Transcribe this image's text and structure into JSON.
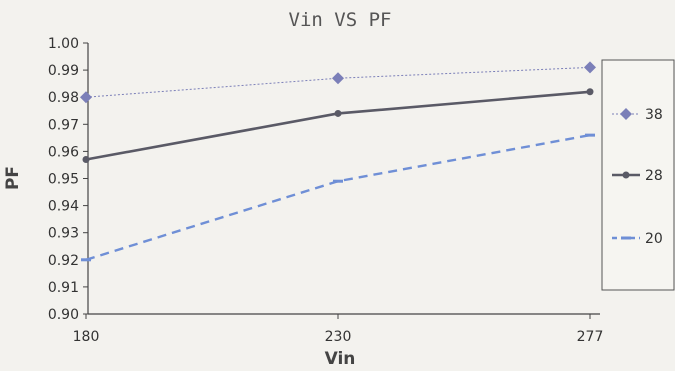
{
  "chart_data": {
    "type": "line",
    "title": "Vin VS PF",
    "xlabel": "Vin",
    "ylabel": "PF",
    "categories": [
      "180",
      "230",
      "277"
    ],
    "ylim": [
      0.9,
      1.0
    ],
    "yticks": [
      "1.00",
      "0.99",
      "0.98",
      "0.97",
      "0.96",
      "0.95",
      "0.94",
      "0.93",
      "0.92",
      "0.91",
      "0.90"
    ],
    "series": [
      {
        "name": "38",
        "values": [
          0.98,
          0.987,
          0.991
        ],
        "color": "#7b7fb8",
        "style": "dotted",
        "marker": "diamond"
      },
      {
        "name": "28",
        "values": [
          0.957,
          0.974,
          0.982
        ],
        "color": "#5a5a66",
        "style": "solid",
        "marker": "circle"
      },
      {
        "name": "20",
        "values": [
          0.92,
          0.949,
          0.966
        ],
        "color": "#6f8fd6",
        "style": "dashed",
        "marker": "dash"
      }
    ],
    "legend_position": "right",
    "grid": false
  }
}
